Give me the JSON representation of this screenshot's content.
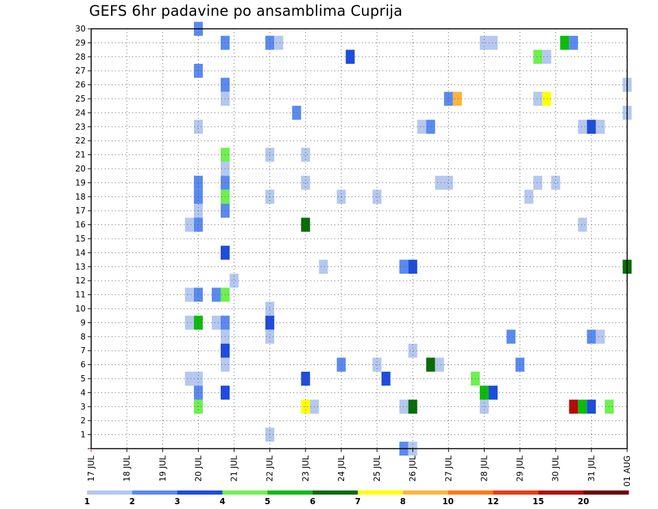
{
  "title": "GEFS 6hr padavine po ansamblima Cuprija",
  "chart_data": {
    "type": "heatmap",
    "title": "GEFS 6hr padavine po ansamblima Cuprija",
    "x_tick_labels": [
      "17 JUL",
      "18 JUL",
      "19 JUL",
      "20 JUL",
      "21 JUL",
      "22 JUL",
      "23 JUL",
      "24 JUL",
      "25 JUL",
      "26 JUL",
      "27 JUL",
      "28 JUL",
      "29 JUL",
      "30 JUL",
      "31 JUL",
      "01 AUG"
    ],
    "y_tick_labels": [
      "1",
      "2",
      "3",
      "4",
      "5",
      "6",
      "7",
      "8",
      "9",
      "10",
      "11",
      "12",
      "13",
      "14",
      "15",
      "16",
      "17",
      "18",
      "19",
      "20",
      "21",
      "22",
      "23",
      "24",
      "25",
      "26",
      "27",
      "28",
      "29",
      "30"
    ],
    "x_range_days": [
      0,
      15
    ],
    "y_range": [
      0,
      30
    ],
    "grid": true,
    "legend": {
      "position": "bottom",
      "labels": [
        "1",
        "2",
        "3",
        "4",
        "5",
        "6",
        "7",
        "8",
        "10",
        "12",
        "15",
        "20"
      ],
      "colors": [
        "#b4c8f0",
        "#5a8af0",
        "#1e4cdc",
        "#6ef050",
        "#0cbc0c",
        "#086c08",
        "#ffff00",
        "#ffb43c",
        "#ff7814",
        "#e83c10",
        "#b40a0a",
        "#6e0000"
      ]
    },
    "cells": [
      {
        "x": 3.0,
        "y": 30,
        "c": 1
      },
      {
        "x": 3.75,
        "y": 29,
        "c": 1
      },
      {
        "x": 5.0,
        "y": 29,
        "c": 1
      },
      {
        "x": 5.25,
        "y": 29,
        "c": 0
      },
      {
        "x": 11.0,
        "y": 29,
        "c": 0
      },
      {
        "x": 11.25,
        "y": 29,
        "c": 0
      },
      {
        "x": 13.25,
        "y": 29,
        "c": 4
      },
      {
        "x": 13.5,
        "y": 29,
        "c": 1
      },
      {
        "x": 7.25,
        "y": 28,
        "c": 2
      },
      {
        "x": 12.5,
        "y": 28,
        "c": 3
      },
      {
        "x": 12.75,
        "y": 28,
        "c": 0
      },
      {
        "x": 3.0,
        "y": 27,
        "c": 1
      },
      {
        "x": 3.75,
        "y": 26,
        "c": 1
      },
      {
        "x": 15.0,
        "y": 26,
        "c": 0
      },
      {
        "x": 3.75,
        "y": 25,
        "c": 0
      },
      {
        "x": 10.0,
        "y": 25,
        "c": 1
      },
      {
        "x": 10.25,
        "y": 25,
        "c": 7
      },
      {
        "x": 12.5,
        "y": 25,
        "c": 0
      },
      {
        "x": 12.75,
        "y": 25,
        "c": 6
      },
      {
        "x": 5.75,
        "y": 24,
        "c": 1
      },
      {
        "x": 15.0,
        "y": 24,
        "c": 0
      },
      {
        "x": 3.0,
        "y": 23,
        "c": 0
      },
      {
        "x": 9.25,
        "y": 23,
        "c": 0
      },
      {
        "x": 9.5,
        "y": 23,
        "c": 1
      },
      {
        "x": 13.75,
        "y": 23,
        "c": 0
      },
      {
        "x": 14.0,
        "y": 23,
        "c": 2
      },
      {
        "x": 14.25,
        "y": 23,
        "c": 0
      },
      {
        "x": 3.75,
        "y": 21,
        "c": 3
      },
      {
        "x": 5.0,
        "y": 21,
        "c": 0
      },
      {
        "x": 6.0,
        "y": 21,
        "c": 0
      },
      {
        "x": 3.75,
        "y": 20,
        "c": 0
      },
      {
        "x": 3.0,
        "y": 19,
        "c": 1
      },
      {
        "x": 3.75,
        "y": 19,
        "c": 1
      },
      {
        "x": 6.0,
        "y": 19,
        "c": 0
      },
      {
        "x": 9.75,
        "y": 19,
        "c": 0
      },
      {
        "x": 10.0,
        "y": 19,
        "c": 0
      },
      {
        "x": 12.5,
        "y": 19,
        "c": 0
      },
      {
        "x": 13.0,
        "y": 19,
        "c": 0
      },
      {
        "x": 3.0,
        "y": 18,
        "c": 1
      },
      {
        "x": 3.75,
        "y": 18,
        "c": 3
      },
      {
        "x": 5.0,
        "y": 18,
        "c": 0
      },
      {
        "x": 7.0,
        "y": 18,
        "c": 0
      },
      {
        "x": 8.0,
        "y": 18,
        "c": 0
      },
      {
        "x": 12.25,
        "y": 18,
        "c": 0
      },
      {
        "x": 3.0,
        "y": 17,
        "c": 0
      },
      {
        "x": 3.75,
        "y": 17,
        "c": 1
      },
      {
        "x": 2.75,
        "y": 16,
        "c": 0
      },
      {
        "x": 3.0,
        "y": 16,
        "c": 1
      },
      {
        "x": 6.0,
        "y": 16,
        "c": 5
      },
      {
        "x": 13.75,
        "y": 16,
        "c": 0
      },
      {
        "x": 3.75,
        "y": 14,
        "c": 2
      },
      {
        "x": 6.5,
        "y": 13,
        "c": 0
      },
      {
        "x": 8.75,
        "y": 13,
        "c": 1
      },
      {
        "x": 9.0,
        "y": 13,
        "c": 2
      },
      {
        "x": 15.0,
        "y": 13,
        "c": 5
      },
      {
        "x": 4.0,
        "y": 12,
        "c": 0
      },
      {
        "x": 2.75,
        "y": 11,
        "c": 0
      },
      {
        "x": 3.0,
        "y": 11,
        "c": 1
      },
      {
        "x": 3.5,
        "y": 11,
        "c": 1
      },
      {
        "x": 3.75,
        "y": 11,
        "c": 3
      },
      {
        "x": 5.0,
        "y": 10,
        "c": 0
      },
      {
        "x": 2.75,
        "y": 9,
        "c": 0
      },
      {
        "x": 3.0,
        "y": 9,
        "c": 4
      },
      {
        "x": 3.5,
        "y": 9,
        "c": 0
      },
      {
        "x": 3.75,
        "y": 9,
        "c": 1
      },
      {
        "x": 5.0,
        "y": 9,
        "c": 2
      },
      {
        "x": 3.75,
        "y": 8,
        "c": 0
      },
      {
        "x": 5.0,
        "y": 8,
        "c": 0
      },
      {
        "x": 11.75,
        "y": 8,
        "c": 1
      },
      {
        "x": 14.0,
        "y": 8,
        "c": 1
      },
      {
        "x": 14.25,
        "y": 8,
        "c": 0
      },
      {
        "x": 3.75,
        "y": 7,
        "c": 2
      },
      {
        "x": 9.0,
        "y": 7,
        "c": 0
      },
      {
        "x": 3.75,
        "y": 6,
        "c": 0
      },
      {
        "x": 7.0,
        "y": 6,
        "c": 1
      },
      {
        "x": 8.0,
        "y": 6,
        "c": 0
      },
      {
        "x": 9.5,
        "y": 6,
        "c": 5
      },
      {
        "x": 9.75,
        "y": 6,
        "c": 0
      },
      {
        "x": 12.0,
        "y": 6,
        "c": 1
      },
      {
        "x": 2.75,
        "y": 5,
        "c": 0
      },
      {
        "x": 3.0,
        "y": 5,
        "c": 0
      },
      {
        "x": 6.0,
        "y": 5,
        "c": 2
      },
      {
        "x": 8.25,
        "y": 5,
        "c": 2
      },
      {
        "x": 10.75,
        "y": 5,
        "c": 3
      },
      {
        "x": 3.0,
        "y": 4,
        "c": 1
      },
      {
        "x": 3.75,
        "y": 4,
        "c": 2
      },
      {
        "x": 11.0,
        "y": 4,
        "c": 4
      },
      {
        "x": 11.25,
        "y": 4,
        "c": 2
      },
      {
        "x": 3.0,
        "y": 3,
        "c": 3
      },
      {
        "x": 6.0,
        "y": 3,
        "c": 6
      },
      {
        "x": 6.25,
        "y": 3,
        "c": 0
      },
      {
        "x": 8.75,
        "y": 3,
        "c": 0
      },
      {
        "x": 9.0,
        "y": 3,
        "c": 5
      },
      {
        "x": 11.0,
        "y": 3,
        "c": 0
      },
      {
        "x": 13.5,
        "y": 3,
        "c": 10
      },
      {
        "x": 13.75,
        "y": 3,
        "c": 4
      },
      {
        "x": 14.0,
        "y": 3,
        "c": 2
      },
      {
        "x": 14.5,
        "y": 3,
        "c": 3
      },
      {
        "x": 5.0,
        "y": 1,
        "c": 0
      },
      {
        "x": 8.75,
        "y": 0,
        "c": 1
      },
      {
        "x": 9.0,
        "y": 0,
        "c": 0
      }
    ]
  }
}
